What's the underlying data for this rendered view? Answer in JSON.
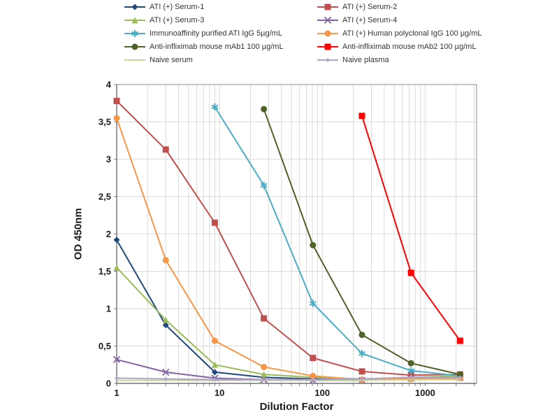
{
  "chart_data": {
    "type": "line",
    "title": "",
    "xlabel": "Dilution Factor",
    "ylabel": "OD 450nm",
    "x_scale": "log",
    "xlim": [
      1,
      3162
    ],
    "ylim": [
      0,
      4
    ],
    "x_ticks": [
      1,
      10,
      100,
      1000
    ],
    "x_tick_labels": [
      "1",
      "10",
      "100",
      "1000"
    ],
    "y_ticks": [
      0,
      0.5,
      1,
      1.5,
      2,
      2.5,
      3,
      3.5,
      4
    ],
    "y_tick_labels": [
      "0",
      "0,5",
      "1",
      "1,5",
      "2",
      "2,5",
      "3",
      "3,5",
      "4"
    ],
    "grid": true,
    "legend_position": "top",
    "grid_color": "#D9D9D9",
    "axis_color": "#7F7F7F",
    "series": [
      {
        "name": "ATI (+) Serum-1",
        "color": "#1F497D",
        "marker": "diamond",
        "x": [
          1,
          3,
          9,
          27,
          81,
          243,
          729,
          2187
        ],
        "y": [
          1.92,
          0.78,
          0.15,
          0.08,
          0.06,
          0.05,
          0.06,
          0.07
        ]
      },
      {
        "name": "ATI (+) Serum-2",
        "color": "#C0504D",
        "marker": "square",
        "x": [
          1,
          3,
          9,
          27,
          81,
          243,
          729,
          2187
        ],
        "y": [
          3.78,
          3.13,
          2.15,
          0.87,
          0.34,
          0.16,
          0.11,
          0.12
        ]
      },
      {
        "name": "ATI (+) Serum-3",
        "color": "#9BBB59",
        "marker": "triangle",
        "x": [
          1,
          3,
          9,
          27,
          81,
          243,
          729,
          2187
        ],
        "y": [
          1.55,
          0.85,
          0.25,
          0.12,
          0.08,
          0.06,
          0.08,
          0.1
        ]
      },
      {
        "name": "ATI (+) Serum-4",
        "color": "#8064A2",
        "marker": "x",
        "x": [
          1,
          3,
          9,
          27,
          81,
          243,
          729,
          2187
        ],
        "y": [
          0.32,
          0.15,
          0.07,
          0.05,
          0.04,
          0.04,
          0.07,
          0.08
        ]
      },
      {
        "name": "Immunoaffinity purified ATI IgG 5µg/mL",
        "color": "#4BACC6",
        "marker": "asterisk",
        "x": [
          9,
          27,
          81,
          243,
          729,
          2187
        ],
        "y": [
          3.7,
          2.65,
          1.07,
          0.4,
          0.17,
          0.1
        ]
      },
      {
        "name": "ATI (+) Human polyclonal IgG 100 µg/mL",
        "color": "#F79646",
        "marker": "circle",
        "x": [
          1,
          3,
          9,
          27,
          81,
          243,
          729,
          2187
        ],
        "y": [
          3.55,
          1.65,
          0.57,
          0.22,
          0.1,
          0.05,
          0.06,
          0.07
        ]
      },
      {
        "name": "Anti-infliximab mouse mAb1 100 µg/mL",
        "color": "#4F6228",
        "marker": "circle",
        "x": [
          27,
          81,
          243,
          729,
          2187
        ],
        "y": [
          3.67,
          1.85,
          0.65,
          0.27,
          0.12
        ]
      },
      {
        "name": "Anti-infliximab mouse mAb2 100 µg/mL",
        "color": "#FF0000",
        "marker": "square",
        "x": [
          243,
          729,
          2187
        ],
        "y": [
          3.58,
          1.48,
          0.57
        ]
      },
      {
        "name": "Naive serum",
        "color": "#C3D69B",
        "marker": "none",
        "x": [
          1,
          3,
          9,
          27,
          81,
          243,
          729,
          2187
        ],
        "y": [
          0.04,
          0.04,
          0.04,
          0.04,
          0.04,
          0.04,
          0.05,
          0.05
        ]
      },
      {
        "name": "Naive plasma",
        "color": "#B3A2C7",
        "marker": "diamond-small",
        "x": [
          1,
          3,
          9,
          27,
          81,
          243,
          729,
          2187
        ],
        "y": [
          0.07,
          0.06,
          0.05,
          0.05,
          0.05,
          0.06,
          0.08,
          0.08
        ]
      }
    ]
  }
}
